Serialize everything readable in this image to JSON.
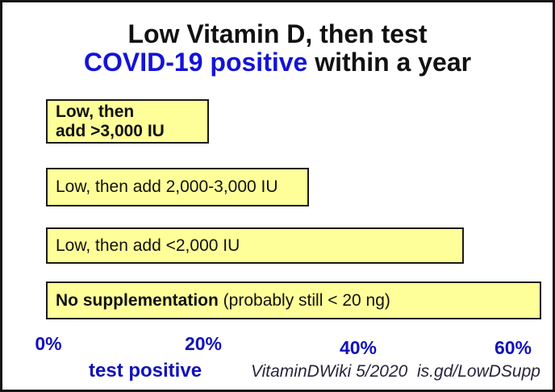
{
  "title": {
    "line1": "Low Vitamin D, then test",
    "line2_blue": "COVID-19 positive",
    "line2_rest": " within a year"
  },
  "axis": {
    "xlabel": "test positive",
    "source": "VitaminDWiki 5/2020  is.gd/LowDSupp"
  },
  "colors": {
    "bar_fill": "#ffff99",
    "bar_border": "#1a1a1a",
    "title_blue": "#1414d6",
    "axis_blue": "#1111bb",
    "text_black": "#111111",
    "source_color": "#26263a"
  },
  "chart_data": {
    "type": "bar",
    "orientation": "horizontal",
    "title": "Low Vitamin D, then test COVID-19 positive within a year",
    "categories": [
      "Low, then add >3,000 IU",
      "Low, then add 2,000-3,000 IU",
      "Low, then add <2,000 IU",
      "No supplementation (probably still < 20 ng)"
    ],
    "values": [
      21,
      34,
      54,
      64
    ],
    "unit": "%",
    "xlabel": "test positive",
    "xlim": [
      0,
      60
    ],
    "grid": false,
    "legend": "none",
    "source": "VitaminDWiki 5/2020  is.gd/LowDSupp",
    "ticks": [
      {
        "value": 0,
        "label": "0%"
      },
      {
        "value": 20,
        "label": "20%"
      },
      {
        "value": 40,
        "label": "40%"
      },
      {
        "value": 60,
        "label": "60%"
      }
    ],
    "bars": [
      {
        "value": 21,
        "segments": [
          {
            "text": "Low, then",
            "bold": true,
            "break": true
          },
          {
            "text": "add >3,000 IU",
            "bold": true
          }
        ]
      },
      {
        "value": 34,
        "segments": [
          {
            "text": "Low, then add 2,000-3,000 IU",
            "bold": false
          }
        ]
      },
      {
        "value": 54,
        "segments": [
          {
            "text": "Low, then add <2,000 IU",
            "bold": false
          }
        ]
      },
      {
        "value": 64,
        "segments": [
          {
            "text": "No supplementation",
            "bold": true
          },
          {
            "text": " (probably still < 20 ng)",
            "bold": false
          }
        ]
      }
    ]
  }
}
